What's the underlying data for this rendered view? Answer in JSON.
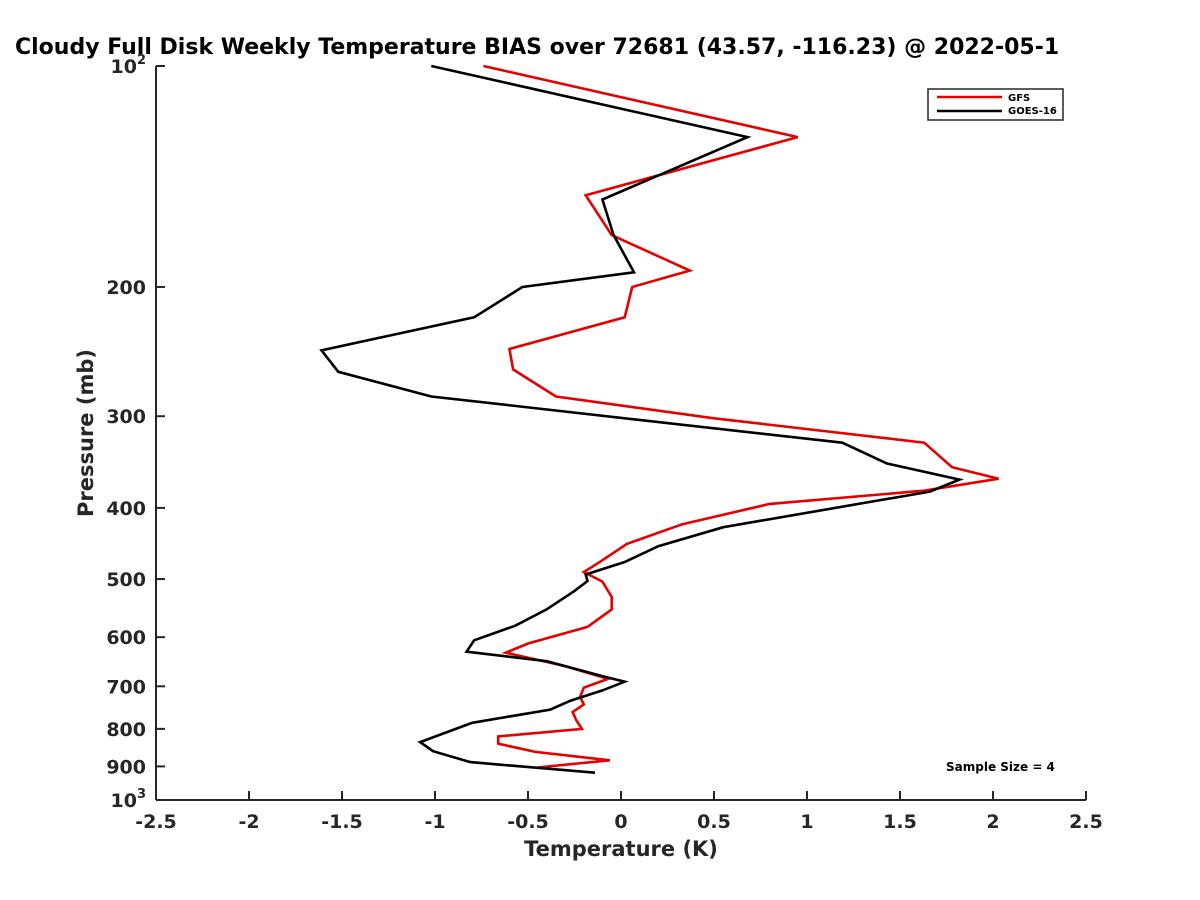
{
  "chart_data": {
    "type": "line",
    "title": "Cloudy Full Disk Weekly Temperature BIAS over 72681 (43.57, -116.23) @ 2022-05-1",
    "xlabel": "Temperature (K)",
    "ylabel": "Pressure (mb)",
    "xlim": [
      -2.5,
      2.5
    ],
    "ylim": [
      100,
      1000
    ],
    "y_scale": "log",
    "y_reversed": true,
    "xticks": [
      -2.5,
      -2,
      -1.5,
      -1,
      -0.5,
      0,
      0.5,
      1,
      1.5,
      2,
      2.5
    ],
    "xtick_labels": [
      "-2.5",
      "-2",
      "-1.5",
      "-1",
      "-0.5",
      "0",
      "0.5",
      "1",
      "1.5",
      "2",
      "2.5"
    ],
    "yticks": [
      100,
      200,
      300,
      400,
      500,
      600,
      700,
      800,
      900,
      1000
    ],
    "ytick_labels": [
      {
        "base": "10",
        "sup": "2"
      },
      {
        "base": "200",
        "sup": ""
      },
      {
        "base": "300",
        "sup": ""
      },
      {
        "base": "400",
        "sup": ""
      },
      {
        "base": "500",
        "sup": ""
      },
      {
        "base": "600",
        "sup": ""
      },
      {
        "base": "700",
        "sup": ""
      },
      {
        "base": "800",
        "sup": ""
      },
      {
        "base": "900",
        "sup": ""
      },
      {
        "base": "10",
        "sup": "3"
      }
    ],
    "grid": false,
    "legend_position": "top-right",
    "annotation": "Sample Size = 4",
    "series": [
      {
        "name": "GFS",
        "color": "#e60000",
        "points": [
          [
            -0.74,
            100
          ],
          [
            0.95,
            125
          ],
          [
            -0.19,
            150
          ],
          [
            -0.05,
            170
          ],
          [
            0.37,
            190
          ],
          [
            0.06,
            200
          ],
          [
            0.02,
            220
          ],
          [
            -0.6,
            243
          ],
          [
            -0.58,
            259
          ],
          [
            -0.35,
            282
          ],
          [
            0.5,
            302
          ],
          [
            1.63,
            326
          ],
          [
            1.78,
            352
          ],
          [
            2.03,
            365
          ],
          [
            1.63,
            379
          ],
          [
            0.8,
            395
          ],
          [
            0.33,
            421
          ],
          [
            0.03,
            448
          ],
          [
            -0.12,
            475
          ],
          [
            -0.2,
            489
          ],
          [
            -0.1,
            504
          ],
          [
            -0.05,
            529
          ],
          [
            -0.05,
            550
          ],
          [
            -0.18,
            581
          ],
          [
            -0.5,
            612
          ],
          [
            -0.62,
            630
          ],
          [
            -0.3,
            657
          ],
          [
            -0.07,
            684
          ],
          [
            -0.2,
            703
          ],
          [
            -0.22,
            724
          ],
          [
            -0.2,
            741
          ],
          [
            -0.26,
            759
          ],
          [
            -0.24,
            779
          ],
          [
            -0.21,
            800
          ],
          [
            -0.66,
            819
          ],
          [
            -0.66,
            838
          ],
          [
            -0.46,
            860
          ],
          [
            -0.06,
            883
          ],
          [
            -0.45,
            903
          ]
        ]
      },
      {
        "name": "GOES-16",
        "color": "#000000",
        "points": [
          [
            -1.02,
            100
          ],
          [
            0.68,
            125
          ],
          [
            -0.1,
            152
          ],
          [
            -0.04,
            170
          ],
          [
            0.07,
            191
          ],
          [
            -0.53,
            200
          ],
          [
            -0.79,
            220
          ],
          [
            -1.61,
            244
          ],
          [
            -1.52,
            261
          ],
          [
            -1.02,
            282
          ],
          [
            1.19,
            326
          ],
          [
            1.43,
            348
          ],
          [
            1.82,
            366
          ],
          [
            1.66,
            380
          ],
          [
            0.55,
            425
          ],
          [
            0.2,
            451
          ],
          [
            0.02,
            474
          ],
          [
            -0.19,
            493
          ],
          [
            -0.18,
            503
          ],
          [
            -0.25,
            519
          ],
          [
            -0.4,
            550
          ],
          [
            -0.57,
            579
          ],
          [
            -0.79,
            606
          ],
          [
            -0.83,
            628
          ],
          [
            -0.4,
            647
          ],
          [
            -0.08,
            680
          ],
          [
            0.02,
            690
          ],
          [
            -0.1,
            709
          ],
          [
            -0.27,
            732
          ],
          [
            -0.38,
            753
          ],
          [
            -0.8,
            785
          ],
          [
            -1.08,
            834
          ],
          [
            -1.01,
            858
          ],
          [
            -0.81,
            888
          ],
          [
            -0.14,
            918
          ]
        ]
      }
    ]
  }
}
